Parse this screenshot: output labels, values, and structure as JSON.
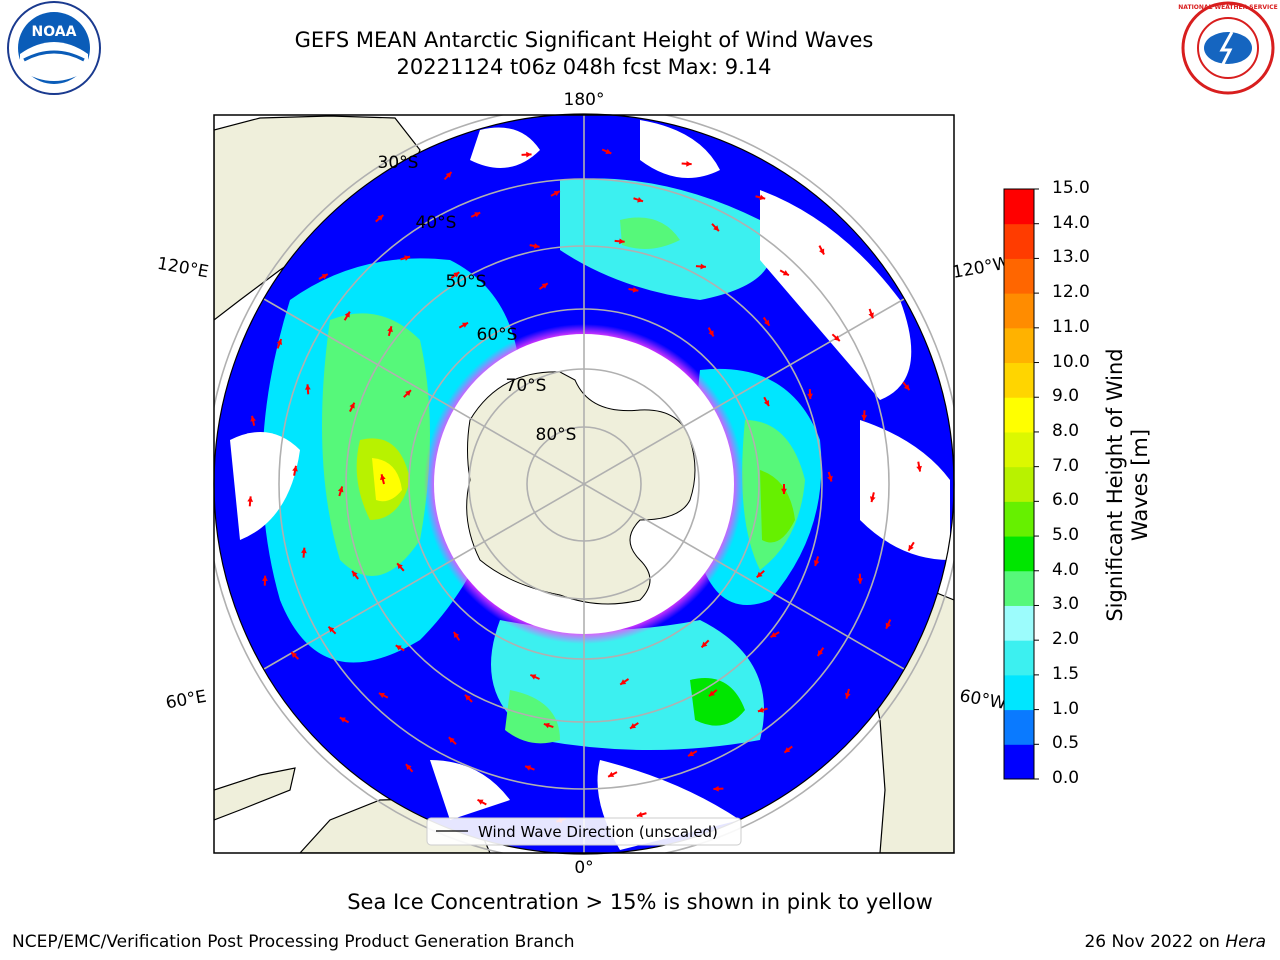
{
  "title_line1": "GEFS MEAN Antarctic Significant Height of Wind Waves",
  "title_line2": "20221124 t06z 048h fcst   Max: 9.14",
  "caption": "Sea Ice Concentration > 15% is shown in pink to yellow",
  "footer_left": "NCEP/EMC/Verification Post Processing Product Generation Branch",
  "footer_right_prefix": "26 Nov 2022 on ",
  "footer_right_machine": "Hera",
  "map": {
    "projection": "south-polar-stereographic",
    "longitude_labels": [
      "180°",
      "120°E",
      "120°W",
      "60°E",
      "60°W",
      "0°"
    ],
    "latitude_labels": [
      "30°S",
      "40°S",
      "50°S",
      "60°S",
      "70°S",
      "80°S"
    ],
    "legend_label": "Wind Wave Direction (unscaled)",
    "land_color": "#efefdb",
    "arrow_color": "#ff0000"
  },
  "colorbar": {
    "title": "Significant Height of Wind Waves [m]",
    "ticks": [
      "0.0",
      "0.5",
      "1.0",
      "1.5",
      "2.0",
      "3.0",
      "4.0",
      "5.0",
      "6.0",
      "7.0",
      "8.0",
      "9.0",
      "10.0",
      "11.0",
      "12.0",
      "13.0",
      "14.0",
      "15.0"
    ],
    "colors": [
      "#0000ff",
      "#0a7aff",
      "#00e6ff",
      "#3cf0f0",
      "#9cfcfc",
      "#56f87a",
      "#00e600",
      "#66f000",
      "#b8f200",
      "#dcf800",
      "#ffff00",
      "#ffd500",
      "#ffb200",
      "#ff8c00",
      "#ff6600",
      "#ff3c00",
      "#ff0000"
    ]
  },
  "logos": {
    "noaa_text": "NOAA",
    "nws_text": "NATIONAL WEATHER SERVICE"
  }
}
